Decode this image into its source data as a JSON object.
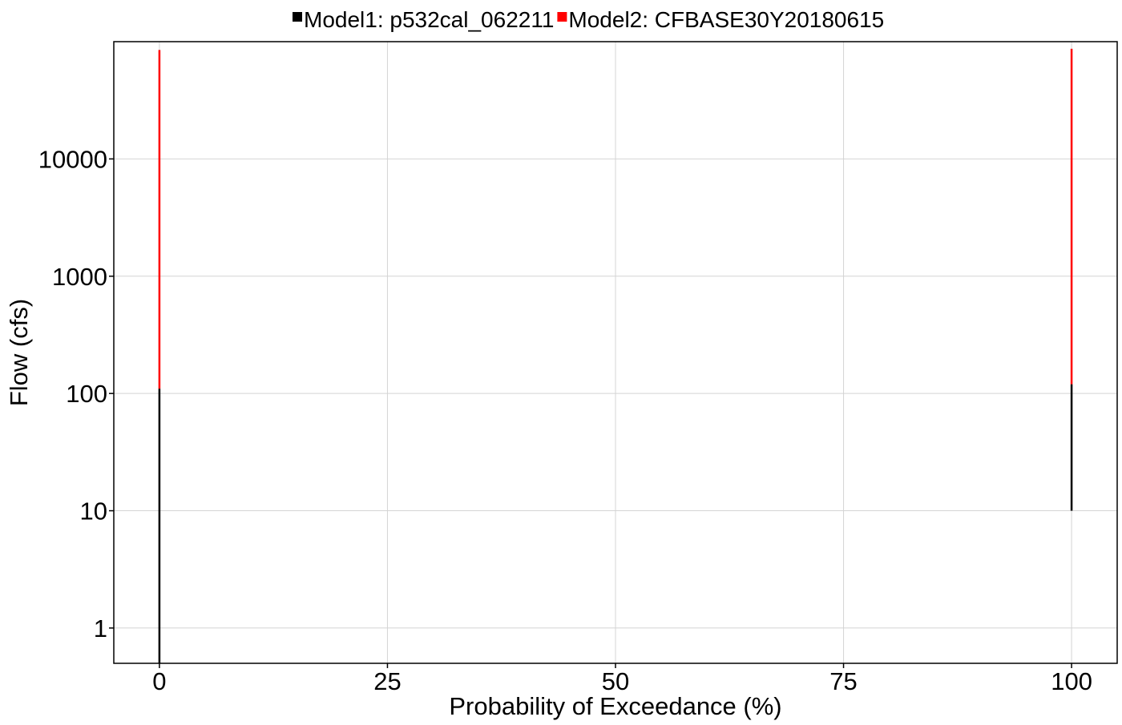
{
  "chart_data": {
    "type": "line",
    "title": "",
    "xlabel": "Probability of Exceedance (%)",
    "ylabel": "Flow (cfs)",
    "xlim": [
      -5,
      105
    ],
    "ylim": [
      0.5,
      100000
    ],
    "yscale": "log",
    "grid": true,
    "legend_position": "top",
    "x_ticks": [
      0,
      25,
      50,
      75,
      100
    ],
    "x_tick_labels": [
      "0",
      "25",
      "50",
      "75",
      "100"
    ],
    "y_ticks": [
      1,
      10,
      100,
      1000,
      10000
    ],
    "y_tick_labels": [
      "1",
      "10",
      "100",
      "1000",
      "10000"
    ],
    "series": [
      {
        "name": "Model1:  p532cal_062211",
        "color": "#000000",
        "segments": [
          {
            "x": 0,
            "y_min": 0.5,
            "y_max": 110
          },
          {
            "x": 100,
            "y_min": 10,
            "y_max": 120
          }
        ]
      },
      {
        "name": "Model2:  CFBASE30Y20180615",
        "color": "#ff0000",
        "segments": [
          {
            "x": 0,
            "y_min": 110,
            "y_max": 85000
          },
          {
            "x": 100,
            "y_min": 120,
            "y_max": 87000
          }
        ]
      }
    ]
  }
}
